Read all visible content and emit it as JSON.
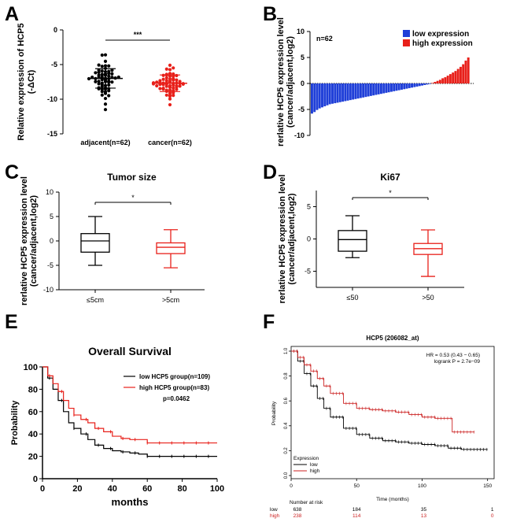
{
  "colors": {
    "blue": "#1f3fd8",
    "red": "#e8201a",
    "black": "#000000",
    "dark_red": "#cc2222"
  },
  "chart_data": [
    {
      "panel": "A",
      "type": "scatter",
      "title": "",
      "ylabel_line1": "Relative expression of HCP5",
      "ylabel_line2": "(-ΔCt)",
      "categories": [
        "adjacent(n=62)",
        "cancer(n=62)"
      ],
      "ylim": [
        -15,
        0
      ],
      "yticks": [
        "0",
        "-5",
        "-10",
        "-15"
      ],
      "significance": "***",
      "series": [
        {
          "name": "adjacent(n=62)",
          "color": "black",
          "mean": -7.0,
          "sd": 1.4,
          "min": -11.5,
          "max": -3.6
        },
        {
          "name": "cancer(n=62)",
          "color": "red",
          "mean": -7.7,
          "sd": 1.2,
          "min": -10.8,
          "max": -5.1
        }
      ]
    },
    {
      "panel": "B",
      "type": "bar",
      "annotation": "n=62",
      "ylabel_line1": "rerlative HCP5 expression level",
      "ylabel_line2": "(cancer/adjacent,log2)",
      "ylim": [
        -10,
        10
      ],
      "yticks": [
        "10",
        "5",
        "0",
        "-5",
        "-10"
      ],
      "legend": [
        {
          "label": "low expression",
          "color": "blue"
        },
        {
          "label": "high expression",
          "color": "red"
        }
      ],
      "values": [
        -5.8,
        -5.5,
        -5.1,
        -4.8,
        -4.6,
        -4.4,
        -4.2,
        -4.0,
        -3.9,
        -3.8,
        -3.7,
        -3.6,
        -3.5,
        -3.4,
        -3.3,
        -3.2,
        -3.1,
        -3.0,
        -2.9,
        -2.8,
        -2.7,
        -2.6,
        -2.5,
        -2.4,
        -2.3,
        -2.2,
        -2.1,
        -2.0,
        -1.9,
        -1.8,
        -1.7,
        -1.6,
        -1.5,
        -1.4,
        -1.3,
        -1.2,
        -1.1,
        -1.0,
        -0.9,
        -0.8,
        -0.7,
        -0.6,
        -0.5,
        -0.4,
        -0.3,
        -0.2,
        -0.1,
        0.1,
        0.3,
        0.5,
        0.7,
        1.0,
        1.2,
        1.5,
        1.8,
        2.1,
        2.4,
        2.8,
        3.2,
        3.7,
        4.4,
        5.0
      ]
    },
    {
      "panel": "C",
      "type": "box",
      "title": "Tumor size",
      "ylabel_line1": "rerlative HCP5 expression level",
      "ylabel_line2": "(cancer/adjacent,log2)",
      "ylim": [
        -10,
        10
      ],
      "yticks": [
        "10",
        "5",
        "0",
        "-5",
        "-10"
      ],
      "categories": [
        "≤5cm",
        ">5cm"
      ],
      "significance": "*",
      "boxes": [
        {
          "name": "≤5cm",
          "color": "black",
          "min": -5.0,
          "q1": -2.3,
          "median": 0.0,
          "q3": 1.5,
          "max": 5.0
        },
        {
          "name": ">5cm",
          "color": "red",
          "min": -5.5,
          "q1": -2.6,
          "median": -1.3,
          "q3": -0.4,
          "max": 2.3
        }
      ]
    },
    {
      "panel": "D",
      "type": "box",
      "title": "Ki67",
      "ylabel_line1": "rerlative HCP5 expression level",
      "ylabel_line2": "(cancer/adjacent,log2)",
      "ylim": [
        -7.5,
        7.5
      ],
      "yticks": [
        "5",
        "0",
        "-5"
      ],
      "categories": [
        "≤50",
        ">50"
      ],
      "significance": "*",
      "boxes": [
        {
          "name": "≤50",
          "color": "black",
          "min": -2.9,
          "q1": -1.9,
          "median": -0.1,
          "q3": 1.3,
          "max": 3.6
        },
        {
          "name": ">50",
          "color": "red",
          "min": -5.8,
          "q1": -2.4,
          "median": -1.5,
          "q3": -0.7,
          "max": 1.4
        }
      ]
    },
    {
      "panel": "E",
      "type": "line",
      "title": "Overall Survival",
      "xlabel": "months",
      "ylabel": "Probability",
      "xlim": [
        0,
        100
      ],
      "ylim": [
        0,
        100
      ],
      "xticks": [
        "0",
        "20",
        "40",
        "60",
        "80",
        "100"
      ],
      "yticks": [
        "100",
        "80",
        "60",
        "40",
        "20",
        "0"
      ],
      "pvalue": "p=0.0462",
      "series": [
        {
          "name": "low HCP5 group(n=109)",
          "color": "black",
          "x": [
            0,
            3,
            6,
            9,
            12,
            15,
            18,
            22,
            26,
            30,
            35,
            40,
            45,
            50,
            55,
            60,
            100
          ],
          "y": [
            100,
            90,
            80,
            70,
            60,
            50,
            45,
            40,
            35,
            30,
            27,
            25,
            24,
            23,
            22,
            20,
            20
          ]
        },
        {
          "name": "high HCP5 group(n=83)",
          "color": "red",
          "x": [
            0,
            3,
            6,
            9,
            12,
            15,
            18,
            22,
            26,
            30,
            35,
            40,
            45,
            50,
            55,
            60,
            100
          ],
          "y": [
            100,
            92,
            85,
            78,
            70,
            63,
            57,
            53,
            50,
            45,
            42,
            38,
            36,
            35,
            35,
            32,
            32
          ]
        }
      ]
    },
    {
      "panel": "F",
      "type": "line",
      "title": "HCP5 (206082_at)",
      "xlabel": "Time (months)",
      "ylabel": "Probability",
      "xlim": [
        0,
        155
      ],
      "ylim": [
        0,
        1
      ],
      "xticks": [
        "0",
        "50",
        "100",
        "150"
      ],
      "yticks": [
        "1.0",
        "0.8",
        "0.6",
        "0.4",
        "0.2",
        "0.0"
      ],
      "stats_line1": "HR = 0.53 (0.43 − 0.65)",
      "stats_line2": "logrank P = 2.7e−09",
      "legend_title": "Expression",
      "series": [
        {
          "name": "low",
          "color": "black",
          "x": [
            0,
            5,
            10,
            15,
            20,
            25,
            30,
            40,
            50,
            60,
            70,
            80,
            90,
            100,
            110,
            120,
            130,
            150
          ],
          "y": [
            1.0,
            0.92,
            0.82,
            0.72,
            0.62,
            0.54,
            0.47,
            0.38,
            0.33,
            0.3,
            0.28,
            0.27,
            0.26,
            0.25,
            0.24,
            0.22,
            0.21,
            0.21
          ]
        },
        {
          "name": "high",
          "color": "red",
          "x": [
            0,
            5,
            10,
            15,
            20,
            25,
            30,
            40,
            50,
            60,
            70,
            80,
            90,
            100,
            110,
            120,
            123,
            140
          ],
          "y": [
            1.0,
            0.95,
            0.89,
            0.84,
            0.78,
            0.72,
            0.66,
            0.58,
            0.54,
            0.53,
            0.52,
            0.51,
            0.49,
            0.47,
            0.46,
            0.46,
            0.35,
            0.35
          ]
        }
      ],
      "risk_table": {
        "header": "Number at risk",
        "rows": [
          {
            "label": "low",
            "color": "black",
            "counts": [
              "638",
              "184",
              "35",
              "1"
            ]
          },
          {
            "label": "high",
            "color": "red",
            "counts": [
              "238",
              "114",
              "13",
              "0"
            ]
          }
        ]
      }
    }
  ]
}
